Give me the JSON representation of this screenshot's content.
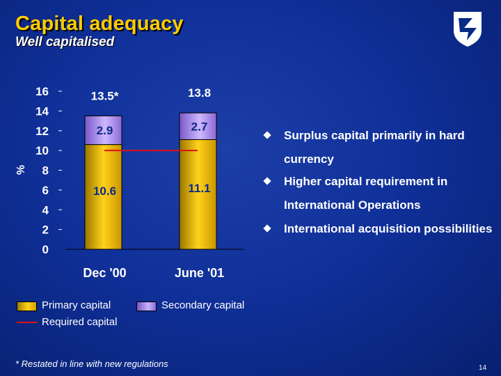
{
  "header": {
    "title": "Capital adequacy",
    "subtitle": "Well capitalised"
  },
  "logo": {
    "icon": "bank-shield-logo-icon"
  },
  "chart_data": {
    "type": "bar",
    "stacked": true,
    "categories": [
      "Dec '00",
      "June '01"
    ],
    "series": [
      {
        "name": "Primary capital",
        "values": [
          10.6,
          11.1
        ],
        "labels": [
          "10.6",
          "11.1"
        ],
        "color": "#ffcc00"
      },
      {
        "name": "Secondary capital",
        "values": [
          2.9,
          2.7
        ],
        "labels": [
          "2.9",
          "2.7"
        ],
        "color": "#b9a3ff"
      }
    ],
    "totals": [
      "13.5*",
      "13.8"
    ],
    "required_capital": {
      "name": "Required capital",
      "value": 10,
      "color": "#e01010"
    },
    "ylabel": "%",
    "ylim": [
      0,
      16
    ],
    "yticks": [
      0,
      2,
      4,
      6,
      8,
      10,
      12,
      14,
      16
    ],
    "ytick_labels": [
      "0",
      "2",
      "4",
      "6",
      "8",
      "10",
      "12",
      "14",
      "16"
    ],
    "grid": false,
    "legend_position": "bottom"
  },
  "bullets": [
    "Surplus capital primarily in hard currency",
    "Higher capital requirement in International Operations",
    "International acquisition possibilities"
  ],
  "footnote": "* Restated in line with new regulations",
  "page_number": "14"
}
